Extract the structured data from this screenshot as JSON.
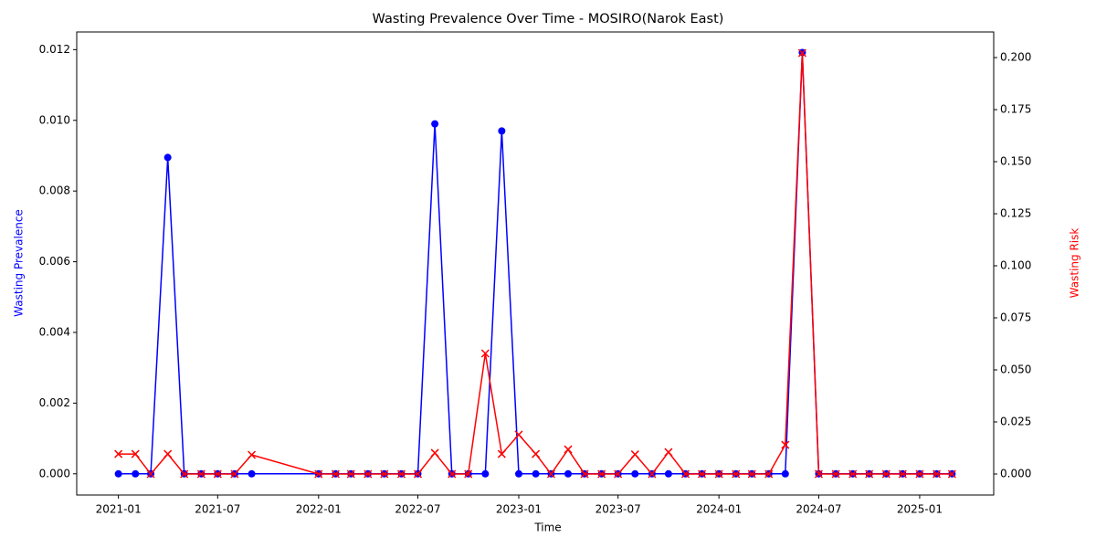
{
  "chart_data": {
    "type": "line",
    "title": "Wasting Prevalence Over Time - MOSIRO(Narok East)",
    "xlabel": "Time",
    "ylabel": "Wasting Prevalence",
    "y2label": "Wasting Risk",
    "x": [
      "2021-01",
      "2021-02",
      "2021-03",
      "2021-04",
      "2021-05",
      "2021-06",
      "2021-07",
      "2021-08",
      "2021-09",
      "2022-01",
      "2022-02",
      "2022-03",
      "2022-04",
      "2022-05",
      "2022-06",
      "2022-07",
      "2022-08",
      "2022-09",
      "2022-10",
      "2022-11",
      "2022-12",
      "2023-01",
      "2023-02",
      "2023-03",
      "2023-04",
      "2023-05",
      "2023-06",
      "2023-07",
      "2023-08",
      "2023-09",
      "2023-10",
      "2023-11",
      "2023-12",
      "2024-01",
      "2024-02",
      "2024-03",
      "2024-04",
      "2024-05",
      "2024-06",
      "2024-07",
      "2024-08",
      "2024-09",
      "2024-10",
      "2024-11",
      "2024-12",
      "2025-01",
      "2025-02",
      "2025-03"
    ],
    "series": [
      {
        "name": "Wasting Prevalence",
        "color": "#0000ff",
        "marker": "o",
        "axis": "y",
        "values": [
          0,
          0,
          0,
          0.00895,
          0,
          0,
          0,
          0,
          0,
          0,
          0,
          0,
          0,
          0,
          0,
          0,
          0.0099,
          0,
          0,
          0,
          0.0097,
          0,
          0,
          0,
          0,
          0,
          0,
          0,
          0,
          0,
          0,
          0,
          0,
          0,
          0,
          0,
          0,
          0,
          0.01192,
          0,
          0,
          0,
          0,
          0,
          0,
          0,
          0,
          0
        ]
      },
      {
        "name": "Wasting Risk",
        "color": "#ff0000",
        "marker": "x",
        "axis": "y2",
        "values": [
          0.0096,
          0.0096,
          0,
          0.0096,
          0,
          0,
          0,
          0,
          0.0092,
          0,
          0,
          0,
          0,
          0,
          0,
          0,
          0.0101,
          0,
          0,
          0.0579,
          0.0096,
          0.0189,
          0.0096,
          0,
          0.0118,
          0,
          0,
          0,
          0.0094,
          0,
          0.0105,
          0,
          0,
          0,
          0,
          0,
          0,
          0.014,
          0.2022,
          0,
          0,
          0,
          0,
          0,
          0,
          0,
          0,
          0
        ]
      }
    ],
    "xlim": [
      "2020-10-17",
      "2025-05-16"
    ],
    "xticks": [
      "2021-01",
      "2021-07",
      "2022-01",
      "2022-07",
      "2023-01",
      "2023-07",
      "2024-01",
      "2024-07",
      "2025-01"
    ],
    "ylim": [
      -0.0006,
      0.0125
    ],
    "yticks": [
      {
        "value": 0,
        "label": "0.000"
      },
      {
        "value": 0.002,
        "label": "0.002"
      },
      {
        "value": 0.004,
        "label": "0.004"
      },
      {
        "value": 0.006,
        "label": "0.006"
      },
      {
        "value": 0.008,
        "label": "0.008"
      },
      {
        "value": 0.01,
        "label": "0.010"
      },
      {
        "value": 0.012,
        "label": "0.012"
      }
    ],
    "y2lim": [
      -0.0101,
      0.2123
    ],
    "y2ticks": [
      {
        "value": 0,
        "label": "0.000"
      },
      0.025,
      {
        "value": 0.05,
        "label": "0.050"
      },
      0.075,
      {
        "value": 0.1,
        "label": "0.100"
      },
      0.125,
      {
        "value": 0.15,
        "label": "0.150"
      },
      0.175,
      {
        "value": 0.2,
        "label": "0.200"
      }
    ],
    "grid": false
  }
}
